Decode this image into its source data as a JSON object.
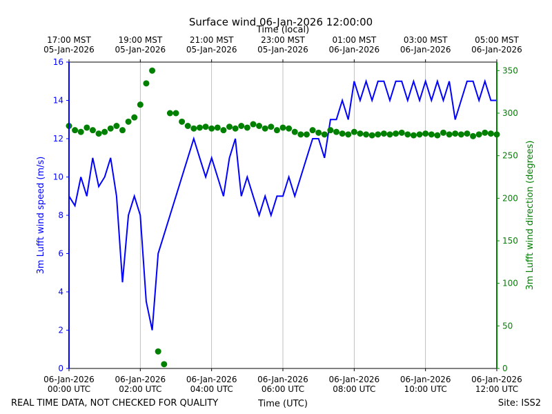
{
  "chart_data": {
    "type": "line",
    "title": "Surface wind 06-Jan-2026 12:00:00",
    "xlabel": "Time (UTC)",
    "x2label": "Time (local)",
    "ylabel": "3m Lufft wind speed (m/s)",
    "y2label": "3m Lufft wind direction (degrees)",
    "footer_left": "REAL TIME DATA, NOT CHECKED FOR QUALITY",
    "footer_right": "Site: ISS2",
    "xlim": [
      "2026-01-06 00:00",
      "2026-01-06 12:00"
    ],
    "xticks": [
      {
        "value": "2026-01-06 00:00",
        "label": "06-Jan-2026\n00:00 UTC"
      },
      {
        "value": "2026-01-06 02:00",
        "label": "06-Jan-2026\n02:00 UTC"
      },
      {
        "value": "2026-01-06 04:00",
        "label": "06-Jan-2026\n04:00 UTC"
      },
      {
        "value": "2026-01-06 06:00",
        "label": "06-Jan-2026\n06:00 UTC"
      },
      {
        "value": "2026-01-06 08:00",
        "label": "06-Jan-2026\n08:00 UTC"
      },
      {
        "value": "2026-01-06 10:00",
        "label": "06-Jan-2026\n10:00 UTC"
      },
      {
        "value": "2026-01-06 12:00",
        "label": "06-Jan-2026\n12:00 UTC"
      }
    ],
    "x2ticks": [
      {
        "value": "2026-01-06 00:00",
        "label": "17:00 MST\n05-Jan-2026"
      },
      {
        "value": "2026-01-06 02:00",
        "label": "19:00 MST\n05-Jan-2026"
      },
      {
        "value": "2026-01-06 04:00",
        "label": "21:00 MST\n05-Jan-2026"
      },
      {
        "value": "2026-01-06 06:00",
        "label": "23:00 MST\n05-Jan-2026"
      },
      {
        "value": "2026-01-06 08:00",
        "label": "01:00 MST\n06-Jan-2026"
      },
      {
        "value": "2026-01-06 10:00",
        "label": "03:00 MST\n06-Jan-2026"
      },
      {
        "value": "2026-01-06 12:00",
        "label": "05:00 MST\n06-Jan-2026"
      }
    ],
    "ylim": [
      0,
      16
    ],
    "yticks": [
      0,
      2,
      4,
      6,
      8,
      10,
      12,
      14,
      16
    ],
    "y2lim": [
      0,
      360
    ],
    "y2ticks": [
      0,
      50,
      100,
      150,
      200,
      250,
      300,
      350
    ],
    "grid": "x",
    "x": [
      "2026-01-06 00:00",
      "2026-01-06 00:10",
      "2026-01-06 00:20",
      "2026-01-06 00:30",
      "2026-01-06 00:40",
      "2026-01-06 00:50",
      "2026-01-06 01:00",
      "2026-01-06 01:10",
      "2026-01-06 01:20",
      "2026-01-06 01:30",
      "2026-01-06 01:40",
      "2026-01-06 01:50",
      "2026-01-06 02:00",
      "2026-01-06 02:10",
      "2026-01-06 02:20",
      "2026-01-06 02:30",
      "2026-01-06 02:40",
      "2026-01-06 02:50",
      "2026-01-06 03:00",
      "2026-01-06 03:10",
      "2026-01-06 03:20",
      "2026-01-06 03:30",
      "2026-01-06 03:40",
      "2026-01-06 03:50",
      "2026-01-06 04:00",
      "2026-01-06 04:10",
      "2026-01-06 04:20",
      "2026-01-06 04:30",
      "2026-01-06 04:40",
      "2026-01-06 04:50",
      "2026-01-06 05:00",
      "2026-01-06 05:10",
      "2026-01-06 05:20",
      "2026-01-06 05:30",
      "2026-01-06 05:40",
      "2026-01-06 05:50",
      "2026-01-06 06:00",
      "2026-01-06 06:10",
      "2026-01-06 06:20",
      "2026-01-06 06:30",
      "2026-01-06 06:40",
      "2026-01-06 06:50",
      "2026-01-06 07:00",
      "2026-01-06 07:10",
      "2026-01-06 07:20",
      "2026-01-06 07:30",
      "2026-01-06 07:40",
      "2026-01-06 07:50",
      "2026-01-06 08:00",
      "2026-01-06 08:10",
      "2026-01-06 08:20",
      "2026-01-06 08:30",
      "2026-01-06 08:40",
      "2026-01-06 08:50",
      "2026-01-06 09:00",
      "2026-01-06 09:10",
      "2026-01-06 09:20",
      "2026-01-06 09:30",
      "2026-01-06 09:40",
      "2026-01-06 09:50",
      "2026-01-06 10:00",
      "2026-01-06 10:10",
      "2026-01-06 10:20",
      "2026-01-06 10:30",
      "2026-01-06 10:40",
      "2026-01-06 10:50",
      "2026-01-06 11:00",
      "2026-01-06 11:10",
      "2026-01-06 11:20",
      "2026-01-06 11:30",
      "2026-01-06 11:40",
      "2026-01-06 11:50",
      "2026-01-06 12:00"
    ],
    "series": [
      {
        "color": "#0000ff",
        "axis": "y",
        "style": "line",
        "values": [
          9,
          8.5,
          10,
          9,
          11,
          9.5,
          10,
          11,
          9,
          4.5,
          8,
          9,
          8,
          3.5,
          2,
          6,
          7,
          8,
          9,
          10,
          11,
          12,
          11,
          10,
          11,
          10,
          9,
          11,
          12,
          9,
          10,
          9,
          8,
          9,
          8,
          9,
          9,
          10,
          9,
          10,
          11,
          12,
          12,
          11,
          13,
          13,
          14,
          13,
          15,
          14,
          15,
          14,
          15,
          15,
          14,
          15,
          15,
          14,
          15,
          14,
          15,
          14,
          15,
          14,
          15,
          13,
          14,
          15,
          15,
          14,
          15,
          14,
          14
        ]
      },
      {
        "color": "#008000",
        "axis": "y2",
        "style": "scatter",
        "values": [
          285,
          280,
          278,
          283,
          280,
          276,
          278,
          282,
          285,
          280,
          290,
          295,
          310,
          335,
          350,
          20,
          5,
          300,
          300,
          290,
          285,
          282,
          283,
          284,
          282,
          283,
          280,
          284,
          282,
          285,
          283,
          287,
          285,
          282,
          284,
          280,
          283,
          282,
          278,
          275,
          275,
          280,
          277,
          275,
          280,
          278,
          276,
          275,
          278,
          276,
          275,
          274,
          275,
          276,
          275,
          276,
          277,
          275,
          274,
          275,
          276,
          275,
          274,
          277,
          275,
          276,
          275,
          276,
          273,
          275,
          277,
          276,
          275
        ]
      }
    ]
  }
}
